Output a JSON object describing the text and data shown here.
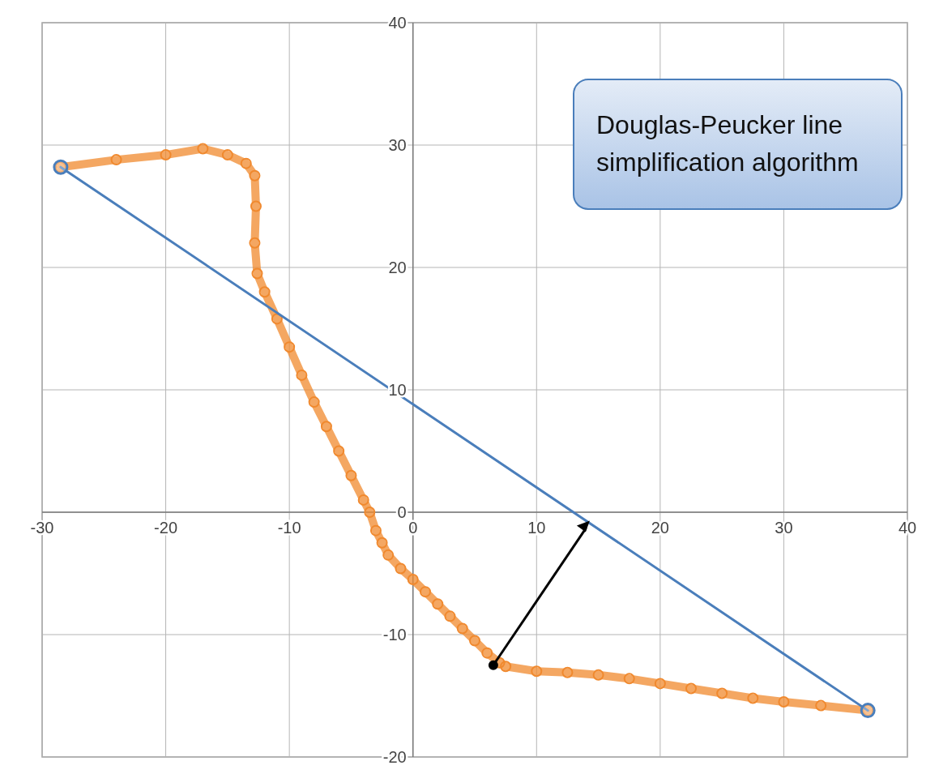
{
  "chart_data": {
    "type": "line",
    "xlim": [
      -30,
      40
    ],
    "ylim": [
      -20,
      40
    ],
    "xticks": [
      -30,
      -20,
      -10,
      0,
      10,
      20,
      30,
      40
    ],
    "yticks": [
      -20,
      -10,
      0,
      10,
      20,
      30,
      40
    ],
    "grid": true,
    "annotations": [
      "Douglas-Peucker line simplification algorithm"
    ],
    "series": [
      {
        "marker": "circle",
        "color": "#f0892e",
        "x": [
          -28.5,
          -24,
          -20,
          -17,
          -15,
          -13.5,
          -12.8,
          -12.7,
          -12.8,
          -12.6,
          -12,
          -11,
          -10,
          -9,
          -8,
          -7,
          -6,
          -5,
          -4,
          -3.5,
          -3,
          -2.5,
          -2,
          -1,
          0,
          1,
          2,
          3,
          4,
          5,
          6,
          7,
          7.5,
          10,
          12.5,
          15,
          17.5,
          20,
          22.5,
          25,
          27.5,
          30,
          33,
          36.8
        ],
        "values": [
          28.2,
          28.8,
          29.2,
          29.7,
          29.2,
          28.5,
          27.5,
          25,
          22,
          19.5,
          18,
          15.8,
          13.5,
          11.2,
          9,
          7,
          5,
          3,
          1,
          0,
          -1.5,
          -2.5,
          -3.5,
          -4.6,
          -5.5,
          -6.5,
          -7.5,
          -8.5,
          -9.5,
          -10.5,
          -11.5,
          -12.3,
          -12.6,
          -13,
          -13.1,
          -13.3,
          -13.6,
          -14,
          -14.4,
          -14.8,
          -15.2,
          -15.5,
          -15.8,
          -16.2
        ]
      },
      {
        "marker": "circle",
        "color": "#4a7ebb",
        "x": [
          -28.5,
          36.8
        ],
        "values": [
          28.2,
          -16.2
        ]
      }
    ]
  }
}
